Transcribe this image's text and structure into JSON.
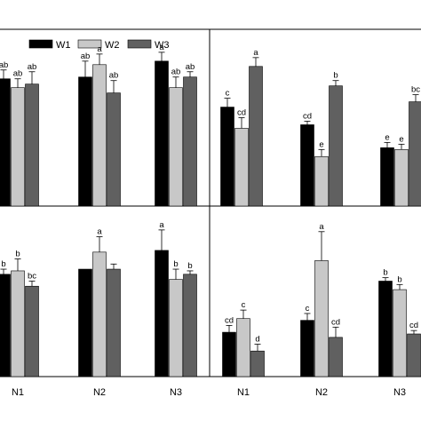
{
  "colors": {
    "W1": "#000000",
    "W2": "#c8c8c8",
    "W3": "#606060",
    "frame": "#000000",
    "background": "#ffffff"
  },
  "legend": [
    "W1",
    "W2",
    "W3"
  ],
  "chart_data": [
    {
      "type": "bar",
      "panel": "top-left",
      "categories": [
        "N1",
        "N2",
        "N3"
      ],
      "series": [
        {
          "name": "W1",
          "values": [
            0.72,
            0.73,
            0.82
          ],
          "errors": [
            0.05,
            0.09,
            0.05
          ],
          "letters": [
            "ab",
            "ab",
            "a"
          ]
        },
        {
          "name": "W2",
          "values": [
            0.67,
            0.8,
            0.67
          ],
          "errors": [
            0.05,
            0.06,
            0.06
          ],
          "letters": [
            "ab",
            "a",
            "ab"
          ]
        },
        {
          "name": "W3",
          "values": [
            0.69,
            0.64,
            0.73
          ],
          "errors": [
            0.07,
            0.07,
            0.03
          ],
          "letters": [
            "ab",
            "ab",
            "ab"
          ]
        }
      ],
      "ylim": [
        0,
        1
      ],
      "grid": false,
      "legend": "top"
    },
    {
      "type": "bar",
      "panel": "top-right",
      "categories": [
        "N1",
        "N2",
        "N3"
      ],
      "series": [
        {
          "name": "W1",
          "values": [
            0.56,
            0.46,
            0.33
          ],
          "errors": [
            0.05,
            0.02,
            0.03
          ],
          "letters": [
            "c",
            "cd",
            "e"
          ]
        },
        {
          "name": "W2",
          "values": [
            0.44,
            0.28,
            0.32
          ],
          "errors": [
            0.06,
            0.04,
            0.03
          ],
          "letters": [
            "cd",
            "e",
            "e"
          ]
        },
        {
          "name": "W3",
          "values": [
            0.79,
            0.68,
            0.59
          ],
          "errors": [
            0.05,
            0.03,
            0.04
          ],
          "letters": [
            "a",
            "b",
            "bc"
          ]
        }
      ],
      "ylim": [
        0,
        1
      ],
      "grid": false
    },
    {
      "type": "bar",
      "panel": "bottom-left",
      "categories": [
        "N1",
        "N2",
        "N3"
      ],
      "series": [
        {
          "name": "W1",
          "values": [
            0.6,
            0.63,
            0.74
          ],
          "errors": [
            0.03,
            0.0,
            0.12
          ],
          "letters": [
            "b",
            "",
            "a"
          ]
        },
        {
          "name": "W2",
          "values": [
            0.62,
            0.73,
            0.57
          ],
          "errors": [
            0.07,
            0.09,
            0.06
          ],
          "letters": [
            "b",
            "a",
            "b"
          ]
        },
        {
          "name": "W3",
          "values": [
            0.53,
            0.63,
            0.6
          ],
          "errors": [
            0.03,
            0.03,
            0.02
          ],
          "letters": [
            "bc",
            "",
            "b"
          ]
        }
      ],
      "ylim": [
        0,
        1
      ],
      "grid": false
    },
    {
      "type": "bar",
      "panel": "bottom-right",
      "categories": [
        "N1",
        "N2",
        "N3"
      ],
      "series": [
        {
          "name": "W1",
          "values": [
            0.26,
            0.33,
            0.56
          ],
          "errors": [
            0.04,
            0.04,
            0.02
          ],
          "letters": [
            "cd",
            "c",
            "b"
          ]
        },
        {
          "name": "W2",
          "values": [
            0.34,
            0.68,
            0.51
          ],
          "errors": [
            0.05,
            0.17,
            0.03
          ],
          "letters": [
            "c",
            "a",
            "b"
          ]
        },
        {
          "name": "W3",
          "values": [
            0.15,
            0.23,
            0.25
          ],
          "errors": [
            0.04,
            0.06,
            0.02
          ],
          "letters": [
            "d",
            "cd",
            "cd"
          ]
        }
      ],
      "ylim": [
        0,
        1
      ],
      "grid": false
    }
  ]
}
